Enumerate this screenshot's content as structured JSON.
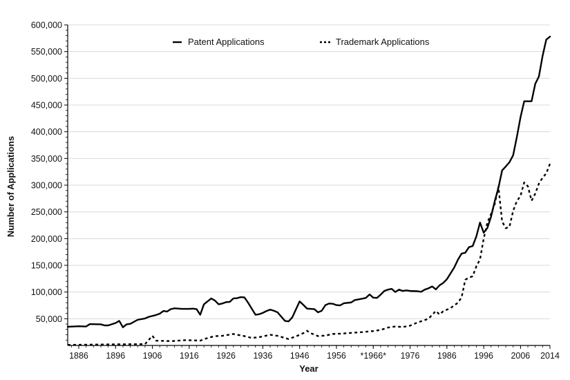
{
  "chart_data": {
    "type": "line",
    "title": "",
    "xlabel": "Year",
    "ylabel": "Number of Applications",
    "xlim": [
      1883,
      2014
    ],
    "ylim": [
      0,
      600000
    ],
    "grid": true,
    "legend_position": "top-center",
    "x_ticks": [
      {
        "value": 1886,
        "label": "1886"
      },
      {
        "value": 1896,
        "label": "1896"
      },
      {
        "value": 1906,
        "label": "1906"
      },
      {
        "value": 1916,
        "label": "1916"
      },
      {
        "value": 1926,
        "label": "1926"
      },
      {
        "value": 1936,
        "label": "1936"
      },
      {
        "value": 1946,
        "label": "1946"
      },
      {
        "value": 1956,
        "label": "1956"
      },
      {
        "value": 1966,
        "label": "*1966*"
      },
      {
        "value": 1976,
        "label": "1976"
      },
      {
        "value": 1986,
        "label": "1986"
      },
      {
        "value": 1996,
        "label": "1996"
      },
      {
        "value": 2006,
        "label": "2006"
      },
      {
        "value": 2014,
        "label": "2014"
      }
    ],
    "y_ticks": [
      {
        "value": 50000,
        "label": "50,000"
      },
      {
        "value": 100000,
        "label": "100,000"
      },
      {
        "value": 150000,
        "label": "150,000"
      },
      {
        "value": 200000,
        "label": "200,000"
      },
      {
        "value": 250000,
        "label": "250,000"
      },
      {
        "value": 300000,
        "label": "300,000"
      },
      {
        "value": 350000,
        "label": "350,000"
      },
      {
        "value": 400000,
        "label": "400,000"
      },
      {
        "value": 450000,
        "label": "450,000"
      },
      {
        "value": 500000,
        "label": "500,000"
      },
      {
        "value": 550000,
        "label": "550,000"
      },
      {
        "value": 600000,
        "label": "600,000"
      }
    ],
    "series": [
      {
        "name": "Patent Applications",
        "style": "solid",
        "color": "#000000",
        "points": [
          [
            1883,
            35000
          ],
          [
            1886,
            36000
          ],
          [
            1888,
            35500
          ],
          [
            1889,
            40000
          ],
          [
            1892,
            39500
          ],
          [
            1893,
            37500
          ],
          [
            1894,
            37500
          ],
          [
            1896,
            42000
          ],
          [
            1897,
            46000
          ],
          [
            1898,
            34000
          ],
          [
            1899,
            39500
          ],
          [
            1900,
            40500
          ],
          [
            1902,
            48000
          ],
          [
            1904,
            50500
          ],
          [
            1905,
            53500
          ],
          [
            1907,
            57000
          ],
          [
            1908,
            59500
          ],
          [
            1909,
            64500
          ],
          [
            1910,
            63500
          ],
          [
            1911,
            68000
          ],
          [
            1912,
            69500
          ],
          [
            1914,
            68500
          ],
          [
            1916,
            68500
          ],
          [
            1917,
            69000
          ],
          [
            1918,
            68000
          ],
          [
            1919,
            57500
          ],
          [
            1920,
            77000
          ],
          [
            1922,
            88000
          ],
          [
            1923,
            84000
          ],
          [
            1924,
            77000
          ],
          [
            1925,
            78500
          ],
          [
            1926,
            81000
          ],
          [
            1927,
            81500
          ],
          [
            1928,
            88000
          ],
          [
            1929,
            88500
          ],
          [
            1930,
            90500
          ],
          [
            1931,
            90000
          ],
          [
            1932,
            80000
          ],
          [
            1934,
            57500
          ],
          [
            1935,
            58500
          ],
          [
            1936,
            61000
          ],
          [
            1937,
            64500
          ],
          [
            1938,
            67000
          ],
          [
            1939,
            65000
          ],
          [
            1940,
            62000
          ],
          [
            1941,
            54000
          ],
          [
            1942,
            46000
          ],
          [
            1943,
            45000
          ],
          [
            1944,
            52500
          ],
          [
            1945,
            67500
          ],
          [
            1946,
            82500
          ],
          [
            1947,
            76000
          ],
          [
            1948,
            69000
          ],
          [
            1949,
            68500
          ],
          [
            1950,
            68000
          ],
          [
            1951,
            62000
          ],
          [
            1952,
            65000
          ],
          [
            1953,
            75500
          ],
          [
            1954,
            78500
          ],
          [
            1955,
            78000
          ],
          [
            1956,
            75500
          ],
          [
            1957,
            75000
          ],
          [
            1958,
            79000
          ],
          [
            1960,
            80500
          ],
          [
            1961,
            85000
          ],
          [
            1963,
            87500
          ],
          [
            1964,
            89000
          ],
          [
            1965,
            95500
          ],
          [
            1966,
            89500
          ],
          [
            1967,
            89000
          ],
          [
            1968,
            95000
          ],
          [
            1969,
            102000
          ],
          [
            1970,
            104500
          ],
          [
            1971,
            106000
          ],
          [
            1972,
            100000
          ],
          [
            1973,
            104500
          ],
          [
            1974,
            102000
          ],
          [
            1975,
            103000
          ],
          [
            1976,
            102000
          ],
          [
            1978,
            101500
          ],
          [
            1979,
            100500
          ],
          [
            1980,
            104500
          ],
          [
            1981,
            107000
          ],
          [
            1982,
            110500
          ],
          [
            1983,
            105000
          ],
          [
            1984,
            112500
          ],
          [
            1985,
            117000
          ],
          [
            1986,
            124000
          ],
          [
            1987,
            135000
          ],
          [
            1988,
            146000
          ],
          [
            1989,
            160500
          ],
          [
            1990,
            172000
          ],
          [
            1991,
            173500
          ],
          [
            1992,
            184000
          ],
          [
            1993,
            186000
          ],
          [
            1994,
            204000
          ],
          [
            1995,
            230000
          ],
          [
            1996,
            211000
          ],
          [
            1997,
            220000
          ],
          [
            1998,
            241000
          ],
          [
            1999,
            270000
          ],
          [
            2000,
            295000
          ],
          [
            2001,
            327500
          ],
          [
            2002,
            335000
          ],
          [
            2003,
            343000
          ],
          [
            2004,
            356000
          ],
          [
            2005,
            390000
          ],
          [
            2006,
            427000
          ],
          [
            2007,
            457000
          ],
          [
            2008,
            457000
          ],
          [
            2009,
            457000
          ],
          [
            2010,
            489500
          ],
          [
            2011,
            503500
          ],
          [
            2012,
            542000
          ],
          [
            2013,
            572500
          ],
          [
            2014,
            578000
          ]
        ]
      },
      {
        "name": "Trademark Applications",
        "style": "dashed",
        "color": "#000000",
        "points": [
          [
            1883,
            1000
          ],
          [
            1895,
            2000
          ],
          [
            1904,
            2500
          ],
          [
            1906,
            18000
          ],
          [
            1907,
            9000
          ],
          [
            1909,
            8500
          ],
          [
            1911,
            8000
          ],
          [
            1913,
            9000
          ],
          [
            1915,
            10000
          ],
          [
            1917,
            9500
          ],
          [
            1919,
            9000
          ],
          [
            1921,
            14000
          ],
          [
            1923,
            17500
          ],
          [
            1925,
            18000
          ],
          [
            1928,
            21500
          ],
          [
            1931,
            17500
          ],
          [
            1933,
            14000
          ],
          [
            1935,
            15500
          ],
          [
            1938,
            20000
          ],
          [
            1940,
            18000
          ],
          [
            1942,
            14000
          ],
          [
            1943,
            12000
          ],
          [
            1945,
            17000
          ],
          [
            1947,
            23000
          ],
          [
            1948,
            27500
          ],
          [
            1949,
            23000
          ],
          [
            1951,
            17500
          ],
          [
            1953,
            18500
          ],
          [
            1955,
            21500
          ],
          [
            1957,
            22000
          ],
          [
            1960,
            23500
          ],
          [
            1963,
            25000
          ],
          [
            1966,
            27000
          ],
          [
            1968,
            29000
          ],
          [
            1970,
            33500
          ],
          [
            1972,
            35500
          ],
          [
            1974,
            34500
          ],
          [
            1976,
            37000
          ],
          [
            1978,
            43000
          ],
          [
            1980,
            47500
          ],
          [
            1981,
            50000
          ],
          [
            1983,
            64500
          ],
          [
            1984,
            58000
          ],
          [
            1985,
            64000
          ],
          [
            1987,
            70000
          ],
          [
            1989,
            80000
          ],
          [
            1990,
            90000
          ],
          [
            1991,
            123000
          ],
          [
            1992,
            127000
          ],
          [
            1993,
            129500
          ],
          [
            1994,
            148000
          ],
          [
            1995,
            161000
          ],
          [
            1996,
            200000
          ],
          [
            1997,
            230000
          ],
          [
            1998,
            246000
          ],
          [
            1999,
            265000
          ],
          [
            2000,
            297000
          ],
          [
            2001,
            232000
          ],
          [
            2002,
            219500
          ],
          [
            2003,
            222000
          ],
          [
            2004,
            252000
          ],
          [
            2005,
            270000
          ],
          [
            2006,
            280000
          ],
          [
            2007,
            305000
          ],
          [
            2008,
            298000
          ],
          [
            2009,
            271000
          ],
          [
            2010,
            284000
          ],
          [
            2011,
            303000
          ],
          [
            2012,
            314000
          ],
          [
            2013,
            322000
          ],
          [
            2014,
            340000
          ]
        ]
      }
    ]
  }
}
